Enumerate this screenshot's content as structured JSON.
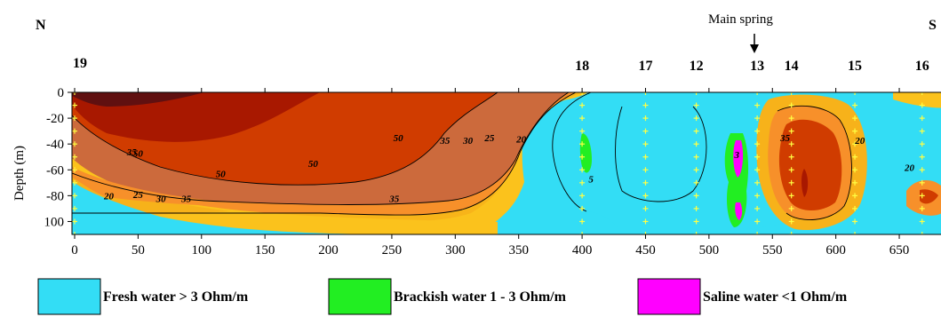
{
  "chart_data": {
    "type": "heatmap",
    "subtype": "resistivity cross-section (contour)",
    "orientation": {
      "left": "N",
      "right": "S"
    },
    "annotation": "Main spring",
    "annotation_x": 538,
    "xlim": [
      0,
      685
    ],
    "ylim": [
      0,
      110
    ],
    "x_ticks": [
      "0",
      "50",
      "100",
      "150",
      "200",
      "250",
      "300",
      "350",
      "400",
      "450",
      "500",
      "550",
      "600",
      "650"
    ],
    "y_ticks": [
      "0",
      "-20",
      "-40",
      "-60",
      "-80",
      "100"
    ],
    "ylabel": "Depth (m)",
    "stations": [
      {
        "label": "19",
        "x": 0
      },
      {
        "label": "18",
        "x": 400
      },
      {
        "label": "17",
        "x": 450
      },
      {
        "label": "12",
        "x": 490
      },
      {
        "label": "13",
        "x": 538
      },
      {
        "label": "14",
        "x": 565
      },
      {
        "label": "15",
        "x": 615
      },
      {
        "label": "16",
        "x": 668
      }
    ],
    "contour_labels": [
      {
        "text": "35",
        "x": 45,
        "y": 46
      },
      {
        "text": "50",
        "x": 50,
        "y": 47
      },
      {
        "text": "50",
        "x": 115,
        "y": 63
      },
      {
        "text": "50",
        "x": 188,
        "y": 55
      },
      {
        "text": "50",
        "x": 255,
        "y": 35
      },
      {
        "text": "35",
        "x": 292,
        "y": 37
      },
      {
        "text": "30",
        "x": 310,
        "y": 37
      },
      {
        "text": "25",
        "x": 327,
        "y": 35
      },
      {
        "text": "20",
        "x": 352,
        "y": 36
      },
      {
        "text": "20",
        "x": 27,
        "y": 80
      },
      {
        "text": "25",
        "x": 50,
        "y": 79
      },
      {
        "text": "30",
        "x": 68,
        "y": 82
      },
      {
        "text": "35",
        "x": 88,
        "y": 82
      },
      {
        "text": "35",
        "x": 252,
        "y": 82
      },
      {
        "text": "5",
        "x": 407,
        "y": 67
      },
      {
        "text": "3",
        "x": 522,
        "y": 48
      },
      {
        "text": "35",
        "x": 560,
        "y": 35
      },
      {
        "text": "20",
        "x": 619,
        "y": 37
      },
      {
        "text": "20",
        "x": 658,
        "y": 58
      }
    ],
    "legend": [
      {
        "label": "Fresh water > 3 Ohm/m",
        "color": "#33ddf5"
      },
      {
        "label": "Brackish water 1 - 3 Ohm/m",
        "color": "#22ee22"
      },
      {
        "label": "Saline water <1 Ohm/m",
        "color": "#ff00ff"
      }
    ],
    "colors": {
      "fresh": "#33ddf5",
      "brackish": "#22ee22",
      "saline": "#ff00ff",
      "r20": "#fbc21c",
      "r25": "#f7b21a",
      "r30": "#f7902a",
      "r35": "#cc6a3c",
      "r50": "#d03c00",
      "r70": "#a81800",
      "r90": "#601010",
      "electrode": "#ffff44"
    },
    "grid": false
  }
}
